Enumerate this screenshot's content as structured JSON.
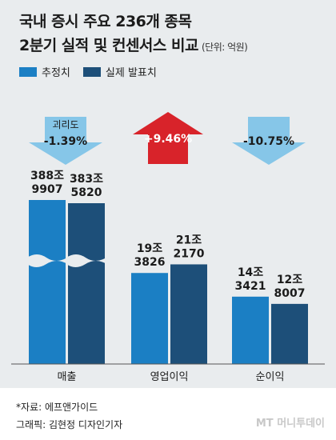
{
  "title_line1": "국내 증시 주요 236개 종목",
  "title_line2": "2분기 실적 및 컨센서스 비교",
  "unit": "(단위: 억원)",
  "legend": {
    "estimate": "추정치",
    "actual": "실제 발표치"
  },
  "colors": {
    "estimate": "#1b7fc4",
    "actual": "#1d4f79",
    "down_arrow": "#86c6e8",
    "up_arrow": "#d8232a",
    "panel": "#e9ecee"
  },
  "arrows": [
    {
      "caption": "괴리도",
      "value": "-1.39%",
      "direction": "down"
    },
    {
      "caption": "",
      "value": "+9.46%",
      "direction": "up"
    },
    {
      "caption": "",
      "value": "-10.75%",
      "direction": "down"
    }
  ],
  "chart_data": {
    "type": "bar",
    "axis_break": true,
    "categories": [
      "매출",
      "영업이익",
      "순이익"
    ],
    "series": [
      {
        "name": "추정치",
        "values": [
          3889907,
          193826,
          143421
        ],
        "labels": [
          [
            "388조",
            "9907"
          ],
          [
            "19조",
            "3826"
          ],
          [
            "14조",
            "3421"
          ]
        ]
      },
      {
        "name": "실제 발표치",
        "values": [
          3835820,
          212170,
          128007
        ],
        "labels": [
          [
            "383조",
            "5820"
          ],
          [
            "21조",
            "2170"
          ],
          [
            "12조",
            "8007"
          ]
        ]
      }
    ]
  },
  "footer": {
    "source": "*자료: 에프앤가이드",
    "credit": "그래픽: 김현정 디자인기자"
  },
  "logo": "MT 머니투데이"
}
